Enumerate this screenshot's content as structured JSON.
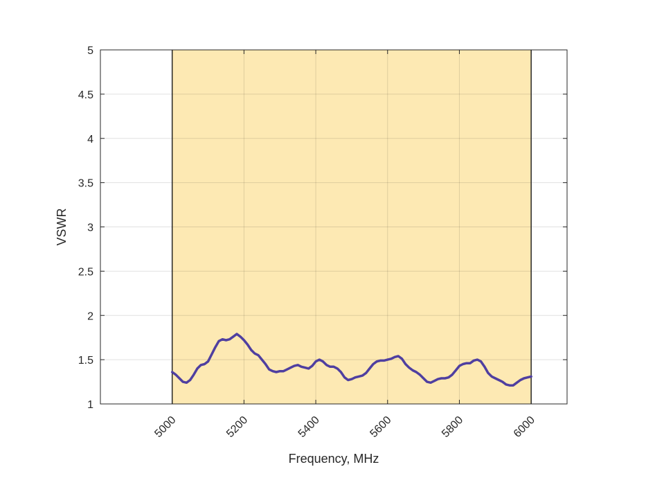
{
  "chart_data": {
    "type": "line",
    "xlabel": "Frequency, MHz",
    "ylabel": "VSWR",
    "xlim": [
      4800,
      6100
    ],
    "ylim": [
      1,
      5
    ],
    "xticks": [
      5000,
      5200,
      5400,
      5600,
      5800,
      6000
    ],
    "yticks": [
      1,
      1.5,
      2,
      2.5,
      3,
      3.5,
      4,
      4.5,
      5
    ],
    "ytick_labels": [
      "1",
      "1.5",
      "2",
      "2.5",
      "3",
      "3.5",
      "4",
      "4.5",
      "5"
    ],
    "grid": true,
    "band": {
      "x_start": 5000,
      "x_end": 6000,
      "color": "#fde9b3"
    },
    "colors": {
      "line": "#4f3fa0",
      "band_edge": "#262626",
      "grid": "#d9d9d9",
      "axis": "#262626"
    },
    "series": [
      {
        "x": [
          5000,
          5010,
          5020,
          5030,
          5040,
          5050,
          5060,
          5070,
          5080,
          5090,
          5100,
          5110,
          5120,
          5130,
          5140,
          5150,
          5160,
          5170,
          5180,
          5190,
          5200,
          5210,
          5220,
          5230,
          5240,
          5250,
          5260,
          5270,
          5280,
          5290,
          5300,
          5310,
          5320,
          5330,
          5340,
          5350,
          5360,
          5370,
          5380,
          5390,
          5400,
          5410,
          5420,
          5430,
          5440,
          5450,
          5460,
          5470,
          5480,
          5490,
          5500,
          5510,
          5520,
          5530,
          5540,
          5550,
          5560,
          5570,
          5580,
          5590,
          5600,
          5610,
          5620,
          5630,
          5640,
          5650,
          5660,
          5670,
          5680,
          5690,
          5700,
          5710,
          5720,
          5730,
          5740,
          5750,
          5760,
          5770,
          5780,
          5790,
          5800,
          5810,
          5820,
          5830,
          5840,
          5850,
          5860,
          5870,
          5880,
          5890,
          5900,
          5910,
          5920,
          5930,
          5940,
          5950,
          5960,
          5970,
          5980,
          5990,
          6000
        ],
        "values": [
          1.36,
          1.33,
          1.29,
          1.25,
          1.24,
          1.27,
          1.33,
          1.4,
          1.44,
          1.45,
          1.48,
          1.56,
          1.64,
          1.71,
          1.73,
          1.72,
          1.73,
          1.76,
          1.79,
          1.76,
          1.72,
          1.67,
          1.61,
          1.57,
          1.55,
          1.5,
          1.45,
          1.39,
          1.37,
          1.36,
          1.37,
          1.37,
          1.39,
          1.41,
          1.43,
          1.44,
          1.42,
          1.41,
          1.4,
          1.43,
          1.48,
          1.5,
          1.48,
          1.44,
          1.42,
          1.42,
          1.4,
          1.36,
          1.3,
          1.27,
          1.28,
          1.3,
          1.31,
          1.32,
          1.35,
          1.4,
          1.45,
          1.48,
          1.49,
          1.49,
          1.5,
          1.51,
          1.53,
          1.54,
          1.51,
          1.45,
          1.41,
          1.38,
          1.36,
          1.33,
          1.29,
          1.25,
          1.24,
          1.26,
          1.28,
          1.29,
          1.29,
          1.3,
          1.33,
          1.38,
          1.43,
          1.45,
          1.46,
          1.46,
          1.49,
          1.5,
          1.48,
          1.42,
          1.35,
          1.31,
          1.29,
          1.27,
          1.25,
          1.22,
          1.21,
          1.21,
          1.24,
          1.27,
          1.29,
          1.3,
          1.31
        ]
      }
    ]
  }
}
